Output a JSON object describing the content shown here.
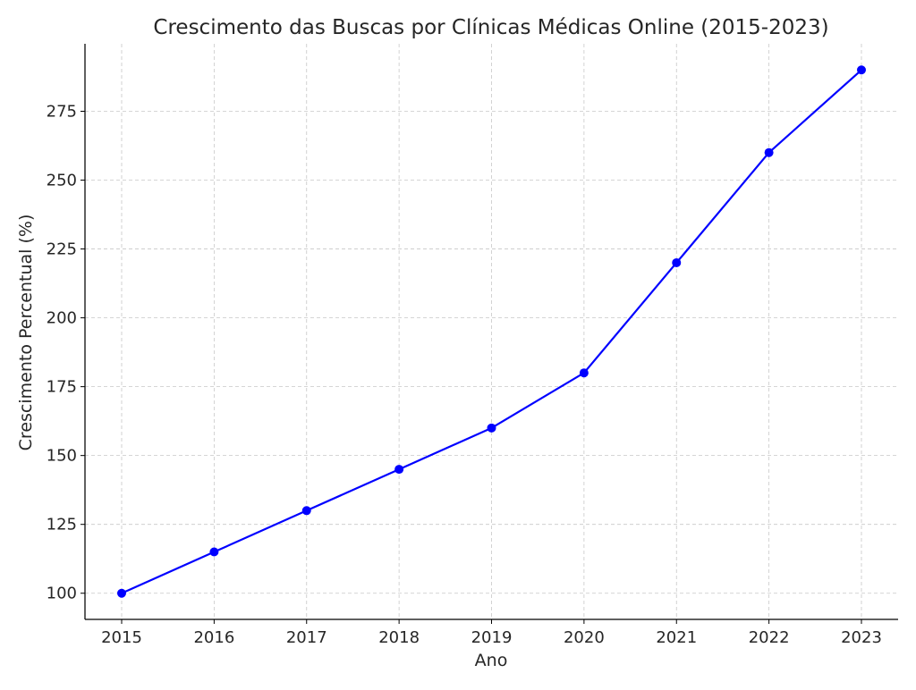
{
  "chart_data": {
    "type": "line",
    "title": "Crescimento das Buscas por Clínicas Médicas Online (2015-2023)",
    "xlabel": "Ano",
    "ylabel": "Crescimento Percentual (%)",
    "x": [
      "2015",
      "2016",
      "2017",
      "2018",
      "2019",
      "2020",
      "2021",
      "2022",
      "2023"
    ],
    "series": [
      {
        "values": [
          100,
          115,
          130,
          145,
          160,
          180,
          220,
          260,
          290
        ],
        "color": "#0000ff",
        "marker": "circle"
      }
    ],
    "yticks": [
      100,
      125,
      150,
      175,
      200,
      225,
      250,
      275
    ],
    "ylim": [
      90.5,
      299.5
    ],
    "grid": true,
    "grid_style": "dashed",
    "legend": false
  }
}
